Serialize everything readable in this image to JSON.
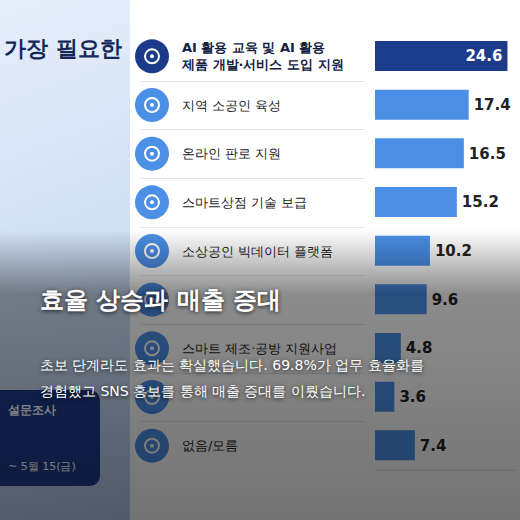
{
  "title": "가장 필요한",
  "chart_data": {
    "type": "bar",
    "orientation": "horizontal",
    "categories": [
      "AI 활용 교육 및 AI 활용 제품 개발·서비스 도입 지원",
      "지역 소공인 육성",
      "온라인 판로 지원",
      "스마트상점 기술 보급",
      "소상공인 빅데이터 플랫폼",
      null,
      "스마트 제조·공방 지원사업",
      null,
      "없음/모름"
    ],
    "values": [
      24.6,
      17.4,
      16.5,
      15.2,
      10.2,
      9.6,
      4.8,
      3.6,
      7.4
    ],
    "colors": [
      "#1d3b8b",
      "#4b8fe6",
      "#4b8fe6",
      "#4b8fe6",
      "#4b8fe6",
      "#4b8fe6",
      "#4b8fe6",
      "#4b8fe6",
      "#4b8fe6"
    ],
    "xlim": [
      0,
      26
    ],
    "data_labels": true,
    "tick_labels": "y"
  },
  "overlay": {
    "title": "효율 상승과 매출 증대",
    "text": "초보 단계라도 효과는 확실했습니다. 69.8%가 업무 효율화를 경험했고 SNS 홍보를 통해 매출 증대를 이뤘습니다."
  },
  "source_box": {
    "label": "설문조사",
    "date": "~ 5월 15(금)"
  }
}
